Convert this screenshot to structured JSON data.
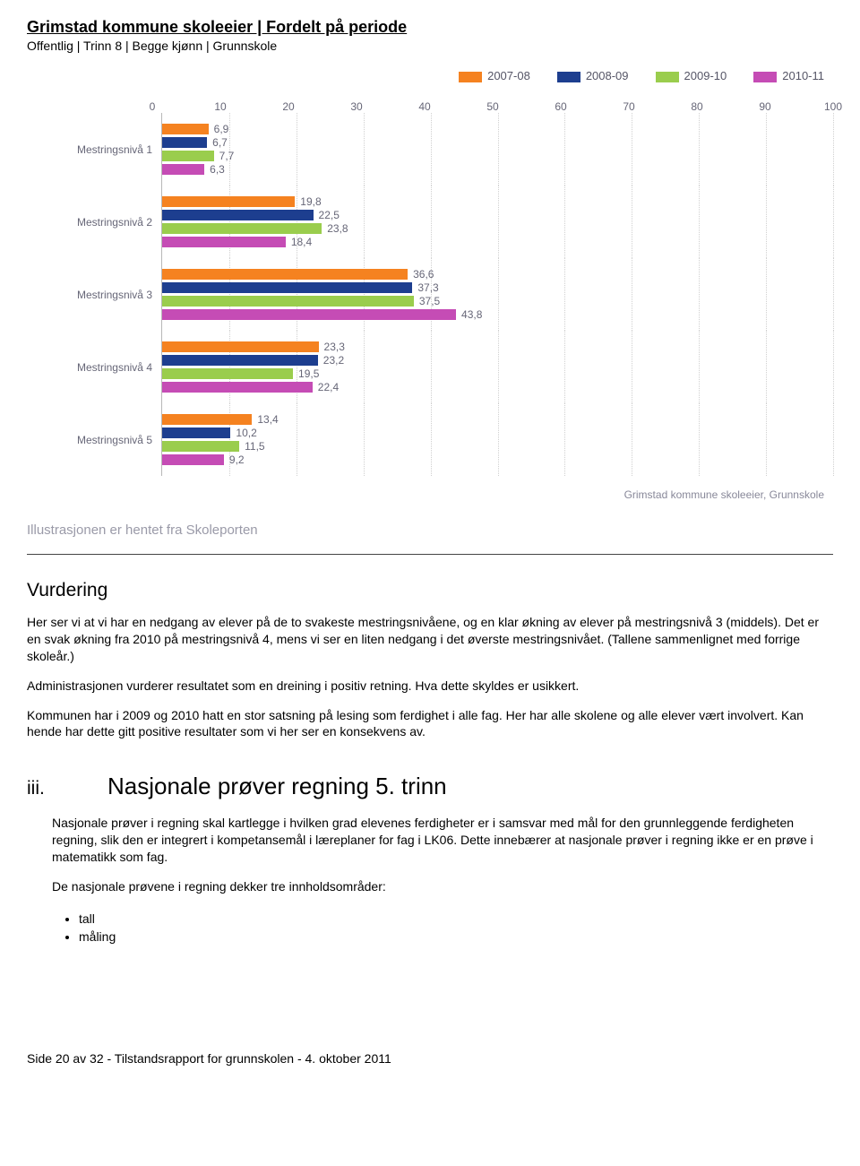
{
  "header": {
    "title": "Grimstad kommune skoleeier | Fordelt på periode",
    "subtitle": "Offentlig | Trinn 8 | Begge kjønn | Grunnskole"
  },
  "chart": {
    "type": "bar",
    "orientation": "horizontal",
    "xlim": [
      0,
      100
    ],
    "xticks": [
      0,
      10,
      20,
      30,
      40,
      50,
      60,
      70,
      80,
      90,
      100
    ],
    "grid_color": "#d0d0d0",
    "axis_color": "#b8b8b8",
    "label_color": "#666677",
    "label_fontsize": 12,
    "background_color": "#ffffff",
    "series": [
      {
        "name": "2007-08",
        "color": "#f58220"
      },
      {
        "name": "2008-09",
        "color": "#1d3e8f"
      },
      {
        "name": "2009-10",
        "color": "#9acd4d"
      },
      {
        "name": "2010-11",
        "color": "#c54cb5"
      }
    ],
    "groups": [
      {
        "label": "Mestringsnivå 1",
        "values": [
          "6,9",
          "6,7",
          "7,7",
          "6,3"
        ]
      },
      {
        "label": "Mestringsnivå 2",
        "values": [
          "19,8",
          "22,5",
          "23,8",
          "18,4"
        ]
      },
      {
        "label": "Mestringsnivå 3",
        "values": [
          "36,6",
          "37,3",
          "37,5",
          "43,8"
        ]
      },
      {
        "label": "Mestringsnivå 4",
        "values": [
          "23,3",
          "23,2",
          "19,5",
          "22,4"
        ]
      },
      {
        "label": "Mestringsnivå 5",
        "values": [
          "13,4",
          "10,2",
          "11,5",
          "9,2"
        ]
      }
    ],
    "source": "Grimstad kommune skoleeier, Grunnskole"
  },
  "illustration_note": "Illustrasjonen er hentet fra Skoleporten",
  "vurdering": {
    "heading": "Vurdering",
    "p1": "Her ser vi at vi har en nedgang av elever på de to svakeste mestringsnivåene, og en klar økning av elever på mestringsnivå 3 (middels). Det er en svak økning fra 2010 på mestringsnivå 4, mens vi ser en liten nedgang i det øverste mestringsnivået. (Tallene sammenlignet med forrige skoleår.)",
    "p2": "Administrasjonen vurderer resultatet som en dreining i positiv retning. Hva dette skyldes er usikkert.",
    "p3": "Kommunen har i 2009 og 2010 hatt en stor satsning på lesing som ferdighet i alle fag. Her har alle skolene og alle elever vært involvert. Kan hende har dette gitt positive resultater som vi her ser en konsekvens av."
  },
  "section_iii": {
    "num": "iii.",
    "title": "Nasjonale prøver regning 5. trinn",
    "p1": "Nasjonale prøver i regning skal kartlegge i hvilken grad elevenes ferdigheter er i samsvar med mål for den grunnleggende ferdigheten regning, slik den er integrert i kompetansemål i læreplaner for fag i LK06. Dette innebærer at nasjonale prøver i regning ikke er en prøve i matematikk som fag.",
    "p2": "De nasjonale prøvene i regning dekker tre innholdsområder:",
    "bullets": [
      "tall",
      "måling"
    ]
  },
  "footer": "Side 20 av 32 - Tilstandsrapport for grunnskolen - 4. oktober 2011"
}
